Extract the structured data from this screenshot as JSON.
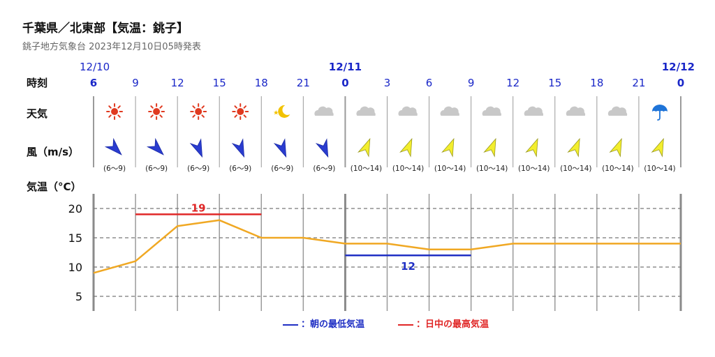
{
  "header": {
    "title": "千葉県／北東部【気温：銚子】",
    "subtitle": "銚子地方気象台 2023年12月10日05時発表"
  },
  "labels": {
    "time": "時刻",
    "weather": "天気",
    "wind": "風（m/s）",
    "temp": "気温（°C）"
  },
  "colors": {
    "time_blue": "#1a27c8",
    "min_line": "#1f2fc4",
    "max_line": "#e02727",
    "temp_line": "#f0a823",
    "sun": "#e03a20",
    "moon": "#f2c200",
    "cloud": "#c8c8c8",
    "umbrella": "#1f74d8",
    "arrow_blue": "#2a3ccf",
    "arrow_yellow": "#f3ee2d"
  },
  "dates": [
    {
      "label": "12/10",
      "hour_index": 0
    },
    {
      "label": "12/11",
      "hour_index": 6
    },
    {
      "label": "12/12",
      "hour_index": 14
    }
  ],
  "hours": [
    "6",
    "9",
    "12",
    "15",
    "18",
    "21",
    "0",
    "3",
    "6",
    "9",
    "12",
    "15",
    "18",
    "21",
    "0"
  ],
  "weather": [
    "sun-icon",
    "sun-icon",
    "sun-icon",
    "sun-icon",
    "moon-icon",
    "cloud-icon",
    "cloud-icon",
    "cloud-icon",
    "cloud-icon",
    "cloud-icon",
    "cloud-icon",
    "cloud-icon",
    "cloud-icon",
    "umbrella-icon"
  ],
  "wind": [
    {
      "speed": "(6〜9)",
      "color": "blue",
      "dir": "northwest"
    },
    {
      "speed": "(6〜9)",
      "color": "blue",
      "dir": "northwest"
    },
    {
      "speed": "(6〜9)",
      "color": "blue",
      "dir": "north-northwest"
    },
    {
      "speed": "(6〜9)",
      "color": "blue",
      "dir": "north-northwest"
    },
    {
      "speed": "(6〜9)",
      "color": "blue",
      "dir": "north-northwest"
    },
    {
      "speed": "(6〜9)",
      "color": "blue",
      "dir": "north-northwest"
    },
    {
      "speed": "(10〜14)",
      "color": "yellow",
      "dir": "south-southwest"
    },
    {
      "speed": "(10〜14)",
      "color": "yellow",
      "dir": "south-southwest"
    },
    {
      "speed": "(10〜14)",
      "color": "yellow",
      "dir": "south-southwest"
    },
    {
      "speed": "(10〜14)",
      "color": "yellow",
      "dir": "south-southwest"
    },
    {
      "speed": "(10〜14)",
      "color": "yellow",
      "dir": "south-southwest"
    },
    {
      "speed": "(10〜14)",
      "color": "yellow",
      "dir": "south-southwest"
    },
    {
      "speed": "(10〜14)",
      "color": "yellow",
      "dir": "south-southwest"
    },
    {
      "speed": "(10〜14)",
      "color": "yellow",
      "dir": "south-southwest"
    }
  ],
  "legend": {
    "min_label": "：朝の最低気温",
    "max_label": "：日中の最高気温"
  },
  "chart_data": {
    "type": "line",
    "x": [
      "12/10 6",
      "9",
      "12",
      "15",
      "18",
      "21",
      "12/11 0",
      "3",
      "6",
      "9",
      "12",
      "15",
      "18",
      "21",
      "12/12 0"
    ],
    "series": [
      {
        "values": [
          9,
          11,
          17,
          18,
          15,
          15,
          14,
          14,
          13,
          13,
          14,
          14,
          14,
          14,
          14
        ]
      }
    ],
    "max_temp": {
      "value": 19,
      "from_index": 1,
      "to_index": 4,
      "label": "19"
    },
    "min_temp": {
      "value": 12,
      "from_index": 6,
      "to_index": 9,
      "label": "12"
    },
    "yticks": [
      20,
      15,
      10,
      5
    ],
    "ylim": [
      3,
      22
    ],
    "grid": true
  }
}
